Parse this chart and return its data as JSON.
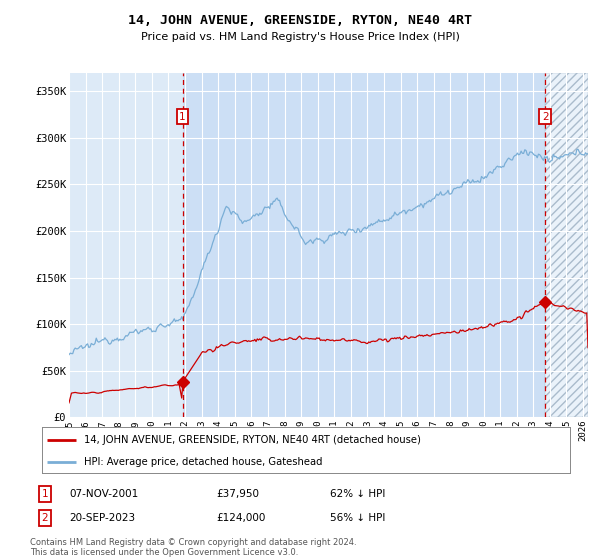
{
  "title": "14, JOHN AVENUE, GREENSIDE, RYTON, NE40 4RT",
  "subtitle": "Price paid vs. HM Land Registry's House Price Index (HPI)",
  "yticks": [
    0,
    50000,
    100000,
    150000,
    200000,
    250000,
    300000,
    350000
  ],
  "xlim_start": 1995.0,
  "xlim_end": 2026.3,
  "ylim": [
    0,
    370000
  ],
  "hpi_color": "#7aaed6",
  "price_color": "#cc0000",
  "sale1_date_x": 2001.85,
  "sale1_price": 37950,
  "sale2_date_x": 2023.72,
  "sale2_price": 124000,
  "legend_line1": "14, JOHN AVENUE, GREENSIDE, RYTON, NE40 4RT (detached house)",
  "legend_line2": "HPI: Average price, detached house, Gateshead",
  "table_row1": [
    "1",
    "07-NOV-2001",
    "£37,950",
    "62% ↓ HPI"
  ],
  "table_row2": [
    "2",
    "20-SEP-2023",
    "£124,000",
    "56% ↓ HPI"
  ],
  "footer": "Contains HM Land Registry data © Crown copyright and database right 2024.\nThis data is licensed under the Open Government Licence v3.0.",
  "bg_color": "#ddeaf7",
  "grid_color": "#ffffff",
  "highlight_bg": "#ccdff5"
}
